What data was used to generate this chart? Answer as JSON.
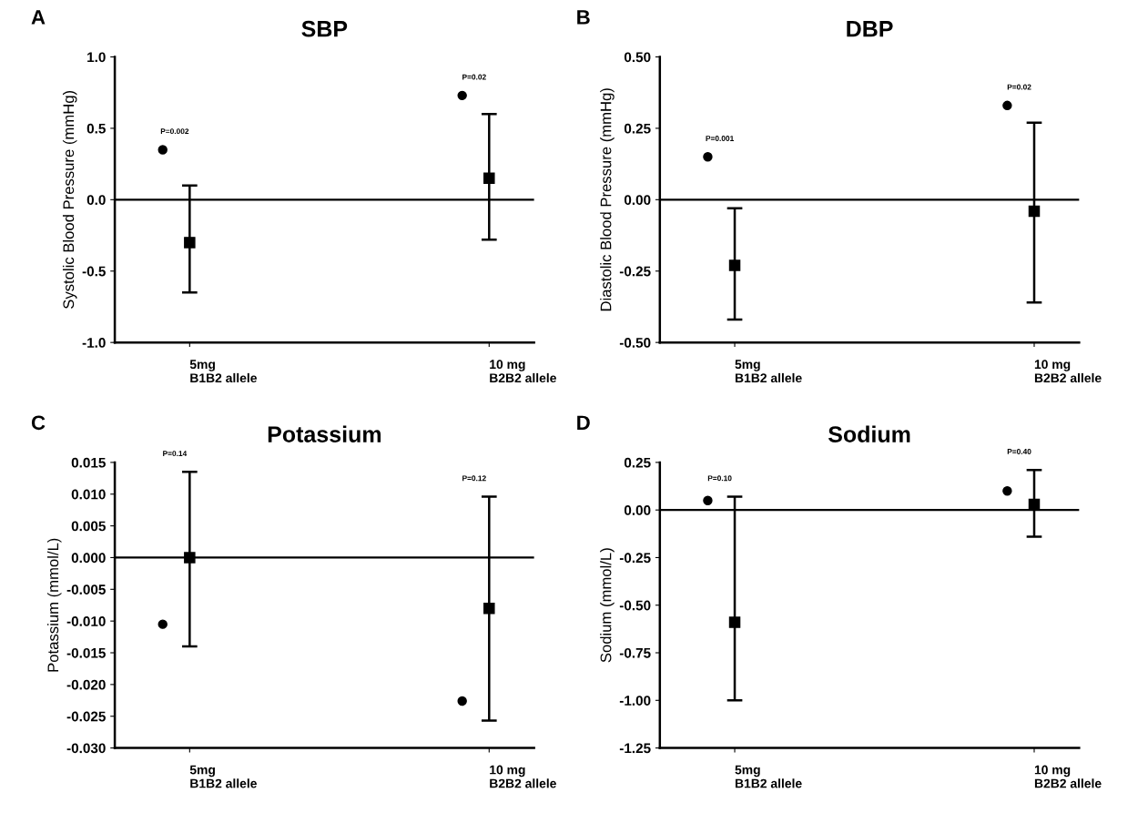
{
  "chart_data": [
    {
      "type": "scatter",
      "title": "SBP",
      "ylabel": "Systolic Blood Pressure (mmHg)",
      "categories": [
        "5mg\nB1B2 allele",
        "10 mg\nB2B2 allele"
      ],
      "ylim": [
        -1.0,
        1.0
      ],
      "yticks": [
        {
          "value": -1.0,
          "label": "-1.0"
        },
        {
          "value": -0.5,
          "label": "-0.5"
        },
        {
          "value": 0.0,
          "label": "0.0"
        },
        {
          "value": 0.5,
          "label": "0.5"
        },
        {
          "value": 1.0,
          "label": "1.0"
        }
      ],
      "grid": false,
      "series": [
        {
          "marker": "circle",
          "color": "#000000",
          "values": [
            0.35,
            0.73
          ]
        },
        {
          "marker": "square",
          "color": "#000000",
          "values": [
            -0.3,
            0.15
          ],
          "errors": [
            [
              -0.65,
              0.1
            ],
            [
              -0.28,
              0.6
            ]
          ]
        }
      ],
      "ref_lines": [
        {
          "axis": "y",
          "value": 0
        }
      ],
      "annotations": [
        "A",
        "P=0.002",
        "P=0.02"
      ]
    },
    {
      "type": "scatter",
      "title": "DBP",
      "ylabel": "Diastolic Blood Pressure (mmHg)",
      "categories": [
        "5mg\nB1B2 allele",
        "10 mg\nB2B2 allele"
      ],
      "ylim": [
        -0.5,
        0.5
      ],
      "yticks": [
        {
          "value": -0.5,
          "label": "-0.50"
        },
        {
          "value": -0.25,
          "label": "-0.25"
        },
        {
          "value": 0.0,
          "label": "0.00"
        },
        {
          "value": 0.25,
          "label": "0.25"
        },
        {
          "value": 0.5,
          "label": "0.50"
        }
      ],
      "grid": false,
      "series": [
        {
          "marker": "circle",
          "color": "#000000",
          "values": [
            0.15,
            0.33
          ]
        },
        {
          "marker": "square",
          "color": "#000000",
          "values": [
            -0.23,
            -0.04
          ],
          "errors": [
            [
              -0.42,
              -0.03
            ],
            [
              -0.36,
              0.27
            ]
          ]
        }
      ],
      "ref_lines": [
        {
          "axis": "y",
          "value": 0
        }
      ],
      "annotations": [
        "B",
        "P=0.001",
        "P=0.02"
      ]
    },
    {
      "type": "scatter",
      "title": "Potassium",
      "ylabel": "Potassium (mmol/L)",
      "categories": [
        "5mg\nB1B2 allele",
        "10 mg\nB2B2 allele"
      ],
      "ylim": [
        -0.03,
        0.015
      ],
      "yticks": [
        {
          "value": -0.03,
          "label": "-0.030"
        },
        {
          "value": -0.025,
          "label": "-0.025"
        },
        {
          "value": -0.02,
          "label": "-0.020"
        },
        {
          "value": -0.015,
          "label": "-0.015"
        },
        {
          "value": -0.01,
          "label": "-0.010"
        },
        {
          "value": -0.005,
          "label": "-0.005"
        },
        {
          "value": 0.0,
          "label": "0.000"
        },
        {
          "value": 0.005,
          "label": "0.005"
        },
        {
          "value": 0.01,
          "label": "0.010"
        },
        {
          "value": 0.015,
          "label": "0.015"
        }
      ],
      "grid": false,
      "series": [
        {
          "marker": "circle",
          "color": "#000000",
          "values": [
            -0.0105,
            -0.0226
          ]
        },
        {
          "marker": "square",
          "color": "#000000",
          "values": [
            0.0,
            -0.008
          ],
          "errors": [
            [
              -0.014,
              0.0135
            ],
            [
              -0.0257,
              0.0096
            ]
          ]
        }
      ],
      "ref_lines": [
        {
          "axis": "y",
          "value": 0
        }
      ],
      "annotations": [
        "C",
        "P=0.14",
        "P=0.12"
      ]
    },
    {
      "type": "scatter",
      "title": "Sodium",
      "ylabel": "Sodium (mmol/L)",
      "categories": [
        "5mg\nB1B2 allele",
        "10 mg\nB2B2 allele"
      ],
      "ylim": [
        -1.25,
        0.25
      ],
      "yticks": [
        {
          "value": -1.25,
          "label": "-1.25"
        },
        {
          "value": -1.0,
          "label": "-1.00"
        },
        {
          "value": -0.75,
          "label": "-0.75"
        },
        {
          "value": -0.5,
          "label": "-0.50"
        },
        {
          "value": -0.25,
          "label": "-0.25"
        },
        {
          "value": 0.0,
          "label": "0.00"
        },
        {
          "value": 0.25,
          "label": "0.25"
        }
      ],
      "grid": false,
      "series": [
        {
          "marker": "circle",
          "color": "#000000",
          "values": [
            0.05,
            0.1
          ]
        },
        {
          "marker": "square",
          "color": "#000000",
          "values": [
            -0.59,
            0.03
          ],
          "errors": [
            [
              -1.0,
              0.07
            ],
            [
              -0.14,
              0.21
            ]
          ]
        }
      ],
      "ref_lines": [
        {
          "axis": "y",
          "value": 0
        }
      ],
      "annotations": [
        "D",
        "P=0.10",
        "P=0.40"
      ]
    }
  ]
}
